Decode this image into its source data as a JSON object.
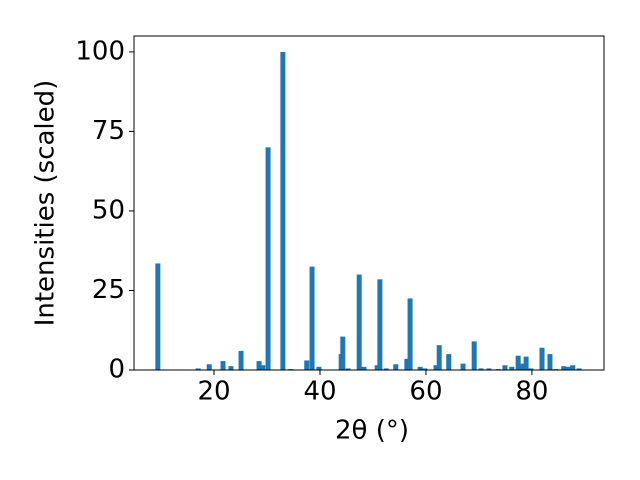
{
  "chart_data": {
    "type": "bar",
    "xlabel": "2θ (°)",
    "ylabel": "Intensities (scaled)",
    "x": [
      9.4,
      17.0,
      19.1,
      21.7,
      23.2,
      25.1,
      28.5,
      29.2,
      30.2,
      33.0,
      34.5,
      37.5,
      38.5,
      39.8,
      44.0,
      44.3,
      45.3,
      47.4,
      48.3,
      50.8,
      51.3,
      52.5,
      54.3,
      56.4,
      57.0,
      58.9,
      59.8,
      61.9,
      62.5,
      64.3,
      67.0,
      69.1,
      70.4,
      71.9,
      73.6,
      74.9,
      76.2,
      77.4,
      78.1,
      78.9,
      79.8,
      81.9,
      83.4,
      84.5,
      86.0,
      86.8,
      87.7,
      88.9
    ],
    "values": [
      33.5,
      0.5,
      1.8,
      2.8,
      1.2,
      6,
      2.8,
      1.5,
      70,
      100,
      0.3,
      3,
      32.5,
      1,
      5,
      10.5,
      0.5,
      30,
      1,
      1.5,
      28.5,
      0.5,
      1.8,
      3.5,
      22.5,
      1,
      0.5,
      1.5,
      7.8,
      5,
      2,
      9,
      0.5,
      0.5,
      0.3,
      1.5,
      1,
      4.5,
      2,
      4.2,
      0.5,
      7,
      5,
      0.3,
      1.2,
      1,
      1.5,
      0.5
    ],
    "color": "#1f77b4",
    "xlim": [
      4.9,
      93.6
    ],
    "xticks": [
      20,
      40,
      60,
      80
    ],
    "ylim": [
      0,
      105
    ],
    "yticks": [
      0,
      25,
      50,
      75,
      100
    ]
  }
}
